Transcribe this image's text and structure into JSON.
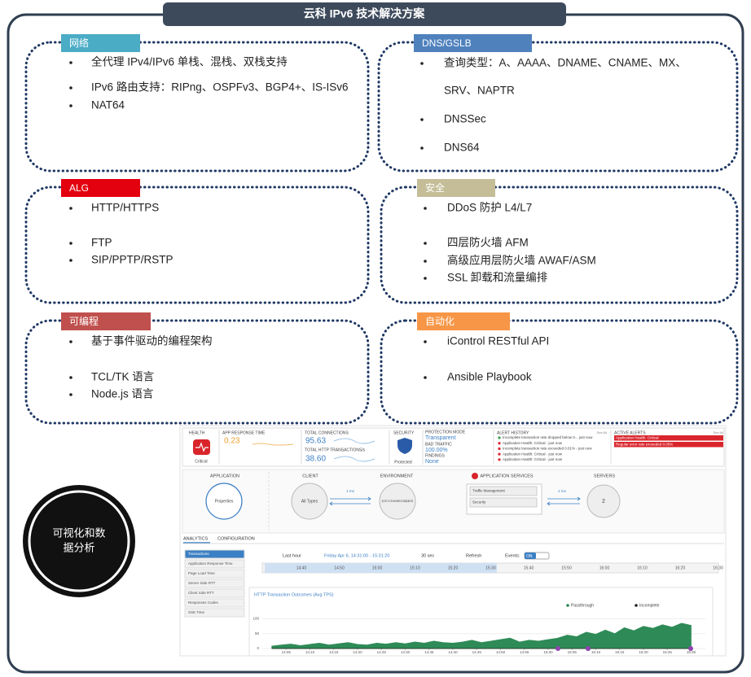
{
  "title": "云科 IPv6 技术解决方案",
  "panels": [
    {
      "label": "网络",
      "color": "#4bacc6",
      "items": [
        "全代理 IPv4/IPv6 单栈、混栈、双栈支持",
        "IPv6 路由支持：RIPng、OSPFv3、BGP4+、IS-ISv6",
        "NAT64"
      ]
    },
    {
      "label": "DNS/GSLB",
      "color": "#4f81bd",
      "items": [
        "查询类型：A、AAAA、DNAME、CNAME、MX、",
        "SRV、NAPTR",
        "DNSSec",
        "DNS64"
      ]
    },
    {
      "label": "ALG",
      "color": "#e3000f",
      "items": [
        "HTTP/HTTPS",
        "FTP",
        "SIP/PPTP/RSTP"
      ]
    },
    {
      "label": "安全",
      "color": "#c4bd97",
      "items": [
        "DDoS 防护 L4/L7",
        "四层防火墙 AFM",
        "高级应用层防火墙 AWAF/ASM",
        "SSL 卸载和流量编排"
      ]
    },
    {
      "label": "可编程",
      "color": "#c0504d",
      "items": [
        "基于事件驱动的编程架构",
        "TCL/TK 语言",
        "Node.js 语言"
      ]
    },
    {
      "label": "自动化",
      "color": "#f79646",
      "items": [
        "iControl RESTful API",
        "Ansible Playbook"
      ]
    }
  ],
  "circle_text": [
    "可视化和数",
    "据分析"
  ],
  "dashboard": {
    "health": {
      "label": "HEALTH",
      "status": "Critical"
    },
    "app_response": {
      "label": "APP RESPONSE TIME",
      "value": "0.23"
    },
    "connections": {
      "label": "TOTAL CONNECTIONS",
      "value": "95.63",
      "tx_label": "TOTAL HTTP TRANSACTIONS/s",
      "tx_value": "38.60"
    },
    "security": {
      "label": "SECURITY",
      "status": "Protected"
    },
    "protection": {
      "mode_label": "PROTECTION MODE",
      "mode": "Transparent",
      "bad_label": "BAD TRAFFIC",
      "bad": "100.00%",
      "findings_label": "FINDINGS",
      "findings": "None"
    },
    "alert_history": {
      "label": "ALERT HISTORY",
      "see_all": "See All",
      "items": [
        "Incomplete transaction rate dropped below 0... just now",
        "Application Health: Critical - just now",
        "Incomplete transaction rate exceeded 0.01% - just now",
        "Application Health: Critical - just now",
        "Application Health: Critical - just now"
      ]
    },
    "active_alerts": {
      "label": "ACTIVE ALERTS",
      "see_all": "See All",
      "items": [
        "Application Health: Critical",
        "Regular error rate exceeded 0.05%"
      ]
    },
    "topology": {
      "headers": [
        "APPLICATION",
        "CLIENT",
        "ENVIRONMENT",
        "APPLICATION SERVICES",
        "SERVERS"
      ],
      "app": "Properties",
      "client": "All Types",
      "env": "ip-10-1-1-9.us-west-2.compute.int",
      "services": [
        "Traffic Management",
        "Security"
      ],
      "latency1": "1 ms",
      "latency2": "2 ms",
      "servers": "2"
    },
    "tabs": [
      "ANALYTICS",
      "CONFIGURATION"
    ],
    "side": [
      "Transactions",
      "Application Response Time",
      "Page Load Time",
      "Server Side RTT",
      "Client Side RTT",
      "Responses Codes",
      "SSE Time"
    ],
    "toolbar": {
      "range": "Last hour",
      "date": "Friday Apr 6, 14:31:00 - 15:31:20",
      "interval": "30 sec",
      "refresh": "Refresh",
      "events": "Events:",
      "events_state": "ON"
    },
    "timeline": [
      "14:40",
      "14:50",
      "15:00",
      "15:10",
      "15:20",
      "15:30",
      "15:40",
      "15:50",
      "16:00",
      "16:10",
      "16:20",
      "16:30"
    ],
    "chart_data": {
      "type": "area",
      "title": "HTTP Transaction Outcomes (Avg TPS)",
      "x": [
        "14:02",
        "14:04",
        "14:06",
        "14:08",
        "14:10",
        "14:12",
        "14:14",
        "14:16",
        "14:18",
        "14:20",
        "14:22",
        "14:24",
        "14:26",
        "14:28",
        "14:30",
        "14:32",
        "14:34",
        "14:36",
        "14:38",
        "14:40",
        "14:42",
        "14:44",
        "14:46",
        "14:48",
        "14:50",
        "14:52",
        "14:54",
        "14:56",
        "14:58",
        "15:00",
        "15:02",
        "15:04",
        "15:06",
        "15:08",
        "15:10",
        "15:12",
        "15:14",
        "15:16",
        "15:18",
        "15:20",
        "15:22",
        "15:24",
        "15:26",
        "15:28",
        "15:30"
      ],
      "series": [
        {
          "name": "Passthrough",
          "color": "#2e8b57",
          "values": [
            8,
            12,
            15,
            10,
            14,
            18,
            12,
            16,
            20,
            14,
            12,
            18,
            15,
            20,
            16,
            22,
            18,
            25,
            20,
            18,
            22,
            28,
            20,
            25,
            30,
            35,
            22,
            28,
            25,
            30,
            35,
            45,
            40,
            55,
            48,
            62,
            50,
            70,
            60,
            75,
            68,
            80,
            72,
            85,
            78
          ]
        },
        {
          "name": "Incomplete",
          "color": "#222222",
          "values": [
            0,
            0,
            0,
            0,
            0,
            0,
            0,
            0,
            0,
            0,
            0,
            0,
            0,
            0,
            0,
            0,
            0,
            0,
            0,
            0,
            0,
            0,
            0,
            0,
            0,
            0,
            0,
            0,
            0,
            0,
            0,
            0,
            0,
            0,
            0,
            0,
            0,
            0,
            0,
            0,
            0,
            0,
            0,
            0,
            0
          ]
        }
      ],
      "xlim": [
        "14:00",
        "15:33"
      ],
      "xticks": [
        "14:05",
        "14:10",
        "14:15",
        "14:20",
        "14:25",
        "14:30",
        "14:35",
        "14:40",
        "14:45",
        "14:50",
        "14:55",
        "15:00",
        "15:05",
        "15:10",
        "15:15",
        "15:20",
        "15:25",
        "15:30"
      ],
      "ylim": [
        0,
        115
      ],
      "yticks": [
        0,
        50,
        100
      ],
      "grid": true
    }
  }
}
